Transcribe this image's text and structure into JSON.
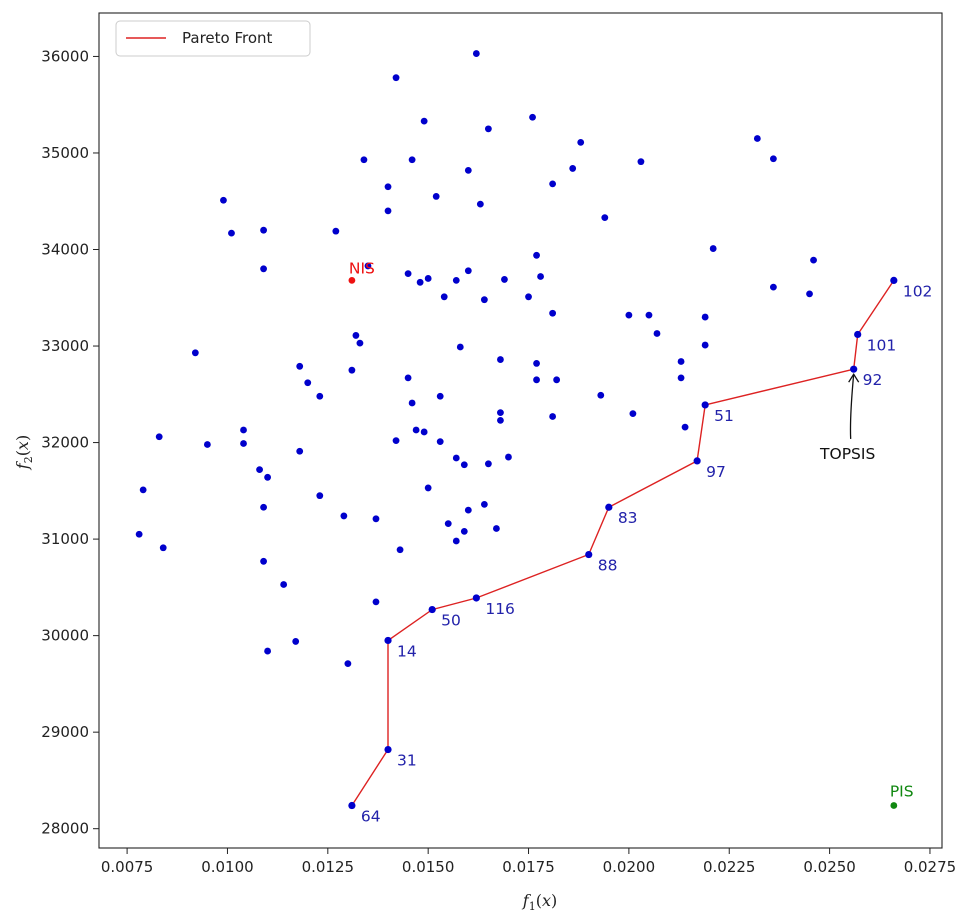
{
  "chart_data": {
    "type": "scatter",
    "xlabel": "f1(x)",
    "ylabel": "f2(x)",
    "xlim": [
      0.0068,
      0.0278
    ],
    "ylim": [
      27800,
      36450
    ],
    "xticks": [
      0.0075,
      0.01,
      0.0125,
      0.015,
      0.0175,
      0.02,
      0.0225,
      0.025,
      0.0275
    ],
    "xtick_labels": [
      "0.0075",
      "0.0100",
      "0.0125",
      "0.0150",
      "0.0175",
      "0.0200",
      "0.0225",
      "0.0250",
      "0.0275"
    ],
    "yticks": [
      28000,
      29000,
      30000,
      31000,
      32000,
      33000,
      34000,
      35000,
      36000
    ],
    "ytick_labels": [
      "28000",
      "29000",
      "30000",
      "31000",
      "32000",
      "33000",
      "34000",
      "35000",
      "36000"
    ],
    "grid": false,
    "legend": {
      "position": "top-left",
      "entries": [
        "Pareto Front"
      ]
    },
    "colors": {
      "points": "#0000cc",
      "front": "#dd2222",
      "nis": "#ee1111",
      "pis": "#118811",
      "label": "#2222aa",
      "annotation": "#111111"
    },
    "points": [
      {
        "x": 0.0099,
        "y": 34510
      },
      {
        "x": 0.0101,
        "y": 34170
      },
      {
        "x": 0.0109,
        "y": 34200
      },
      {
        "x": 0.0109,
        "y": 33800
      },
      {
        "x": 0.0127,
        "y": 34190
      },
      {
        "x": 0.0134,
        "y": 34930
      },
      {
        "x": 0.014,
        "y": 34650
      },
      {
        "x": 0.014,
        "y": 34400
      },
      {
        "x": 0.0142,
        "y": 35780
      },
      {
        "x": 0.0146,
        "y": 34930
      },
      {
        "x": 0.0149,
        "y": 35330
      },
      {
        "x": 0.0152,
        "y": 34550
      },
      {
        "x": 0.016,
        "y": 34820
      },
      {
        "x": 0.0162,
        "y": 36030
      },
      {
        "x": 0.0163,
        "y": 34470
      },
      {
        "x": 0.0165,
        "y": 35250
      },
      {
        "x": 0.0176,
        "y": 35370
      },
      {
        "x": 0.0181,
        "y": 34680
      },
      {
        "x": 0.0186,
        "y": 34840
      },
      {
        "x": 0.0188,
        "y": 35110
      },
      {
        "x": 0.0194,
        "y": 34330
      },
      {
        "x": 0.0203,
        "y": 34910
      },
      {
        "x": 0.0232,
        "y": 35150
      },
      {
        "x": 0.0236,
        "y": 34940
      },
      {
        "x": 0.0221,
        "y": 34010
      },
      {
        "x": 0.0236,
        "y": 33610
      },
      {
        "x": 0.0246,
        "y": 33890
      },
      {
        "x": 0.0245,
        "y": 33540
      },
      {
        "x": 0.0132,
        "y": 33110
      },
      {
        "x": 0.0133,
        "y": 33030
      },
      {
        "x": 0.0131,
        "y": 32750
      },
      {
        "x": 0.0135,
        "y": 33830
      },
      {
        "x": 0.0145,
        "y": 33750
      },
      {
        "x": 0.0148,
        "y": 33660
      },
      {
        "x": 0.015,
        "y": 33700
      },
      {
        "x": 0.0154,
        "y": 33510
      },
      {
        "x": 0.0157,
        "y": 33680
      },
      {
        "x": 0.016,
        "y": 33780
      },
      {
        "x": 0.0164,
        "y": 33480
      },
      {
        "x": 0.0169,
        "y": 33690
      },
      {
        "x": 0.0175,
        "y": 33510
      },
      {
        "x": 0.0177,
        "y": 33940
      },
      {
        "x": 0.0178,
        "y": 33720
      },
      {
        "x": 0.0181,
        "y": 33340
      },
      {
        "x": 0.02,
        "y": 33320
      },
      {
        "x": 0.0205,
        "y": 33320
      },
      {
        "x": 0.0207,
        "y": 33130
      },
      {
        "x": 0.0219,
        "y": 33300
      },
      {
        "x": 0.0219,
        "y": 33010
      },
      {
        "x": 0.0213,
        "y": 32840
      },
      {
        "x": 0.0213,
        "y": 32670
      },
      {
        "x": 0.0214,
        "y": 32160
      },
      {
        "x": 0.0201,
        "y": 32300
      },
      {
        "x": 0.0193,
        "y": 32490
      },
      {
        "x": 0.0181,
        "y": 32270
      },
      {
        "x": 0.0182,
        "y": 32650
      },
      {
        "x": 0.0177,
        "y": 32820
      },
      {
        "x": 0.0177,
        "y": 32650
      },
      {
        "x": 0.0168,
        "y": 32860
      },
      {
        "x": 0.0158,
        "y": 32990
      },
      {
        "x": 0.0153,
        "y": 32480
      },
      {
        "x": 0.0145,
        "y": 32670
      },
      {
        "x": 0.0146,
        "y": 32410
      },
      {
        "x": 0.0147,
        "y": 32130
      },
      {
        "x": 0.0149,
        "y": 32110
      },
      {
        "x": 0.0142,
        "y": 32020
      },
      {
        "x": 0.0153,
        "y": 32010
      },
      {
        "x": 0.0157,
        "y": 31840
      },
      {
        "x": 0.0159,
        "y": 31770
      },
      {
        "x": 0.0165,
        "y": 31780
      },
      {
        "x": 0.0168,
        "y": 32310
      },
      {
        "x": 0.0168,
        "y": 32230
      },
      {
        "x": 0.017,
        "y": 31850
      },
      {
        "x": 0.0092,
        "y": 32930
      },
      {
        "x": 0.0118,
        "y": 32790
      },
      {
        "x": 0.012,
        "y": 32620
      },
      {
        "x": 0.0123,
        "y": 32480
      },
      {
        "x": 0.0104,
        "y": 32130
      },
      {
        "x": 0.0104,
        "y": 31990
      },
      {
        "x": 0.0095,
        "y": 31980
      },
      {
        "x": 0.0083,
        "y": 32060
      },
      {
        "x": 0.0118,
        "y": 31910
      },
      {
        "x": 0.0108,
        "y": 31720
      },
      {
        "x": 0.011,
        "y": 31640
      },
      {
        "x": 0.0109,
        "y": 31330
      },
      {
        "x": 0.0123,
        "y": 31450
      },
      {
        "x": 0.0129,
        "y": 31240
      },
      {
        "x": 0.0137,
        "y": 31210
      },
      {
        "x": 0.015,
        "y": 31530
      },
      {
        "x": 0.016,
        "y": 31300
      },
      {
        "x": 0.0164,
        "y": 31360
      },
      {
        "x": 0.0155,
        "y": 31160
      },
      {
        "x": 0.0159,
        "y": 31080
      },
      {
        "x": 0.0157,
        "y": 30980
      },
      {
        "x": 0.0167,
        "y": 31110
      },
      {
        "x": 0.0143,
        "y": 30890
      },
      {
        "x": 0.0079,
        "y": 31510
      },
      {
        "x": 0.0078,
        "y": 31050
      },
      {
        "x": 0.0084,
        "y": 30910
      },
      {
        "x": 0.0109,
        "y": 30770
      },
      {
        "x": 0.0114,
        "y": 30530
      },
      {
        "x": 0.0137,
        "y": 30350
      },
      {
        "x": 0.0117,
        "y": 29940
      },
      {
        "x": 0.011,
        "y": 29840
      },
      {
        "x": 0.013,
        "y": 29710
      }
    ],
    "pareto_front": [
      {
        "id": "64",
        "x": 0.0131,
        "y": 28240
      },
      {
        "id": "31",
        "x": 0.014,
        "y": 28820
      },
      {
        "id": "14",
        "x": 0.014,
        "y": 29950
      },
      {
        "id": "50",
        "x": 0.0151,
        "y": 30270
      },
      {
        "id": "116",
        "x": 0.0162,
        "y": 30390
      },
      {
        "id": "88",
        "x": 0.019,
        "y": 30840
      },
      {
        "id": "83",
        "x": 0.0195,
        "y": 31330
      },
      {
        "id": "97",
        "x": 0.0217,
        "y": 31810
      },
      {
        "id": "51",
        "x": 0.0219,
        "y": 32390
      },
      {
        "id": "92",
        "x": 0.0256,
        "y": 32760
      },
      {
        "id": "101",
        "x": 0.0257,
        "y": 33120
      },
      {
        "id": "102",
        "x": 0.0266,
        "y": 33680
      }
    ],
    "nis": {
      "label": "NIS",
      "x": 0.0131,
      "y": 33680
    },
    "pis": {
      "label": "PIS",
      "x": 0.0266,
      "y": 28240
    },
    "annotation": {
      "text": "TOPSIS",
      "target_id": "92",
      "text_x": 0.0256,
      "text_y": 31810
    }
  }
}
